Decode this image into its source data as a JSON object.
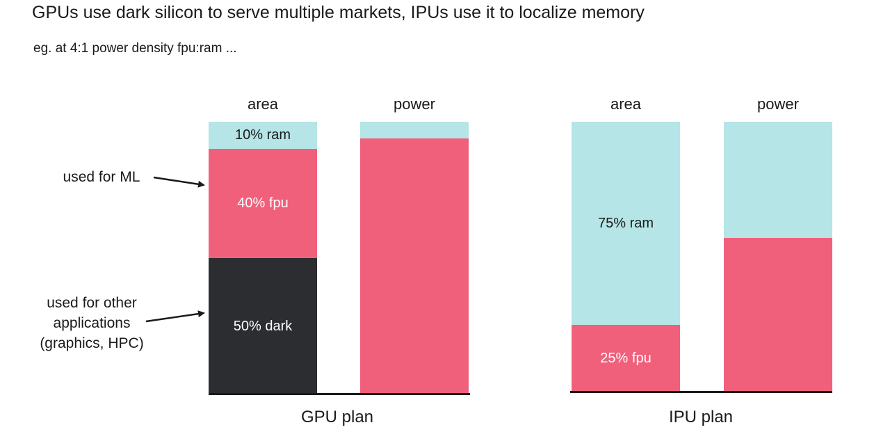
{
  "title": "GPUs use dark silicon to serve multiple markets, IPUs use it to localize memory",
  "subtitle": "eg. at 4:1 power density fpu:ram ...",
  "colors": {
    "ram": "#b5e5e6",
    "fpu": "#f0607b",
    "dark": "#2c2d31",
    "baseline": "#1a1a1a",
    "dark_text": "#1a1a1a",
    "light_text": "#ffffff"
  },
  "gpu": {
    "plan_label": "GPU plan",
    "area": {
      "label": "area",
      "segments": [
        {
          "key": "ram",
          "label": "10% ram",
          "value": 10
        },
        {
          "key": "fpu",
          "label": "40% fpu",
          "value": 40
        },
        {
          "key": "dark",
          "label": "50% dark",
          "value": 50
        }
      ]
    },
    "power": {
      "label": "power",
      "segments": [
        {
          "key": "ram",
          "label": "",
          "value": 6
        },
        {
          "key": "fpu",
          "label": "",
          "value": 94
        }
      ]
    },
    "annotations": {
      "ml": "used for ML",
      "other": [
        "used for other",
        "applications",
        "(graphics, HPC)"
      ]
    }
  },
  "ipu": {
    "plan_label": "IPU plan",
    "area": {
      "label": "area",
      "segments": [
        {
          "key": "ram",
          "label": "75% ram",
          "value": 75
        },
        {
          "key": "fpu",
          "label": "25% fpu",
          "value": 25
        }
      ]
    },
    "power": {
      "label": "power",
      "segments": [
        {
          "key": "ram",
          "label": "",
          "value": 43
        },
        {
          "key": "fpu",
          "label": "",
          "value": 57
        }
      ]
    }
  }
}
